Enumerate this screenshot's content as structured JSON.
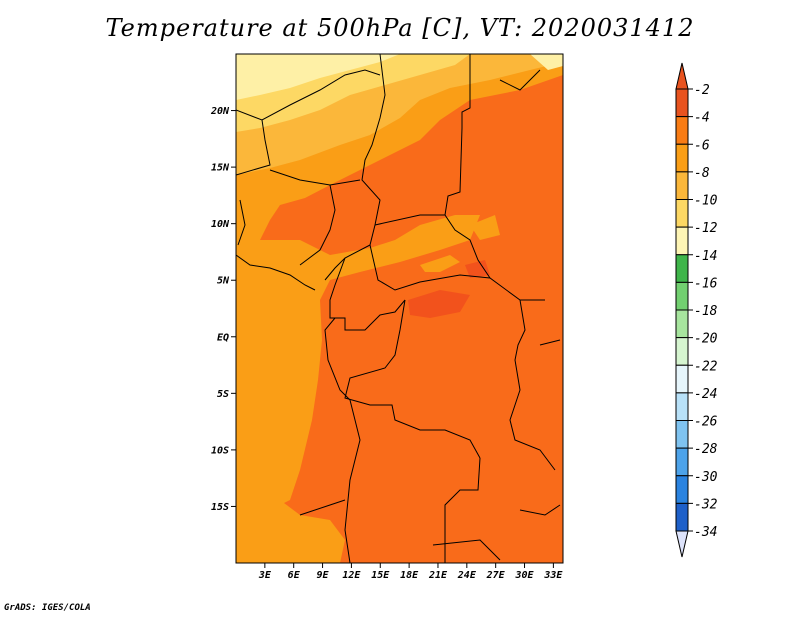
{
  "title": "Temperature at 500hPa [C], VT: 2020031412",
  "credit": "GrADS: IGES/COLA",
  "map": {
    "lon_range": [
      0,
      34
    ],
    "lat_range": [
      -20,
      25
    ],
    "lat_ticks": [
      {
        "value": 20,
        "label": "20N"
      },
      {
        "value": 15,
        "label": "15N"
      },
      {
        "value": 10,
        "label": "10N"
      },
      {
        "value": 5,
        "label": "5N"
      },
      {
        "value": 0,
        "label": "EQ"
      },
      {
        "value": -5,
        "label": "5S"
      },
      {
        "value": -10,
        "label": "10S"
      },
      {
        "value": -15,
        "label": "15S"
      }
    ],
    "lon_ticks": [
      {
        "value": 3,
        "label": "3E"
      },
      {
        "value": 6,
        "label": "6E"
      },
      {
        "value": 9,
        "label": "9E"
      },
      {
        "value": 12,
        "label": "12E"
      },
      {
        "value": 15,
        "label": "15E"
      },
      {
        "value": 18,
        "label": "18E"
      },
      {
        "value": 21,
        "label": "21E"
      },
      {
        "value": 24,
        "label": "24E"
      },
      {
        "value": 27,
        "label": "27E"
      },
      {
        "value": 30,
        "label": "30E"
      },
      {
        "value": 33,
        "label": "33E"
      }
    ]
  },
  "colorbar": {
    "labels": [
      "-2",
      "-4",
      "-6",
      "-8",
      "-10",
      "-12",
      "-14",
      "-16",
      "-18",
      "-20",
      "-22",
      "-24",
      "-26",
      "-28",
      "-30",
      "-32",
      "-34"
    ],
    "colors": [
      "#e8531f",
      "#f97c14",
      "#fa9e16",
      "#fbb73a",
      "#fdd864",
      "#fef5b5",
      "#3fb54a",
      "#72d070",
      "#a7e59e",
      "#d6f5d0",
      "#e6f5fb",
      "#b8e1f8",
      "#7fc3f0",
      "#4da3ea",
      "#2a83e0",
      "#1e60c9",
      "#1447a8",
      "#0b2c83",
      "#081266"
    ],
    "top_arrow_color": "#e8531f",
    "bottom_arrow_color": "#dde3fb"
  },
  "field_colors": {
    "m2_m4": "#f96b1a",
    "m4_m6": "#fa9e16",
    "m6_m8": "#fbb73a",
    "m8_m10": "#fdd864",
    "m10_m12": "#fef0a6",
    "warm_patch": "#f2521c"
  }
}
